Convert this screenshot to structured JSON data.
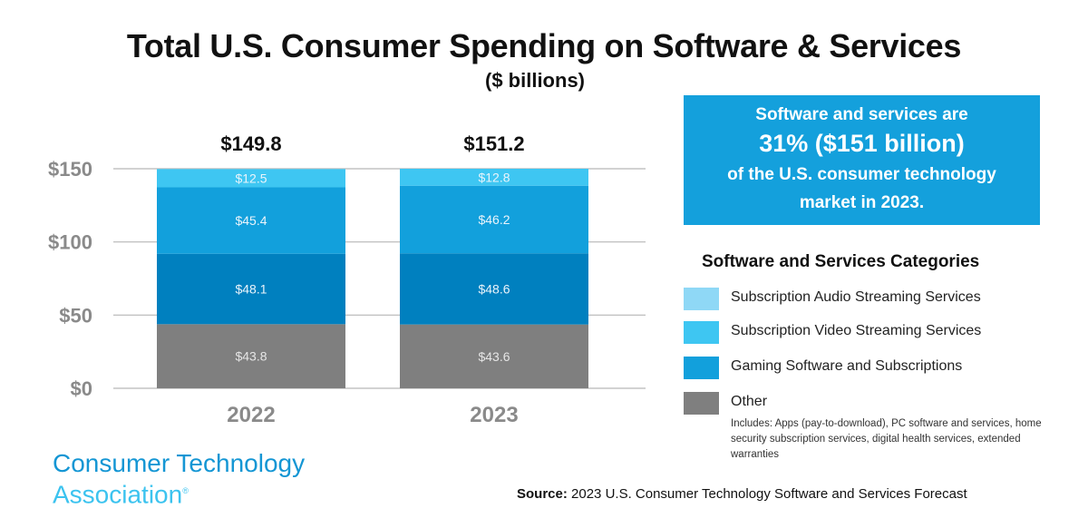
{
  "header": {
    "title": "Total U.S. Consumer Spending on Software & Services",
    "subtitle": "($ billions)"
  },
  "callout": {
    "line1": "Software and services are",
    "line2": "31% ($151 billion)",
    "line3": "of the U.S. consumer technology",
    "line4": "market in 2023."
  },
  "legend": {
    "title": "Software and Services Categories",
    "items": [
      {
        "label": "Subscription Audio Streaming Services",
        "color": "#8fd8f6"
      },
      {
        "label": "Subscription Video Streaming Services",
        "color": "#3ec6f2"
      },
      {
        "label": "Gaming Software and Subscriptions",
        "color": "#12a0dc"
      },
      {
        "label": "Other",
        "color": "#7f7f7f",
        "note": "Includes: Apps (pay-to-download), PC software and services, home security subscription services, digital health services, extended warranties"
      }
    ]
  },
  "logo": {
    "line1": "Consumer Technology",
    "line2": "Association",
    "mark": "®"
  },
  "source": {
    "label": "Source:",
    "text": "2023 U.S. Consumer Technology Software and Services Forecast"
  },
  "chart_data": {
    "type": "bar",
    "stacked": true,
    "title": "Total U.S. Consumer Spending on Software & Services",
    "subtitle": "($ billions)",
    "xlabel": "",
    "ylabel": "",
    "categories": [
      "2022",
      "2023"
    ],
    "totals": [
      "$149.8",
      "$151.2"
    ],
    "ylim": [
      0,
      150
    ],
    "yticks": [
      0,
      50,
      100,
      150
    ],
    "ytick_labels": [
      "$0",
      "$50",
      "$100",
      "$150"
    ],
    "grid": true,
    "legend_position": "right",
    "series": [
      {
        "name": "Other",
        "color": "#7f7f7f",
        "values": [
          43.8,
          43.6
        ],
        "labels": [
          "$43.8",
          "$43.6"
        ]
      },
      {
        "name": "Segment (dark blue)",
        "color": "#0080bf",
        "values": [
          48.1,
          48.6
        ],
        "labels": [
          "$48.1",
          "$48.6"
        ]
      },
      {
        "name": "Segment (mid blue)",
        "color": "#12a0dc",
        "values": [
          45.4,
          46.2
        ],
        "labels": [
          "$45.4",
          "$46.2"
        ]
      },
      {
        "name": "Segment (light blue)",
        "color": "#3ec6f2",
        "values": [
          12.5,
          12.8
        ],
        "labels": [
          "$12.5",
          "$12.8"
        ]
      }
    ]
  }
}
